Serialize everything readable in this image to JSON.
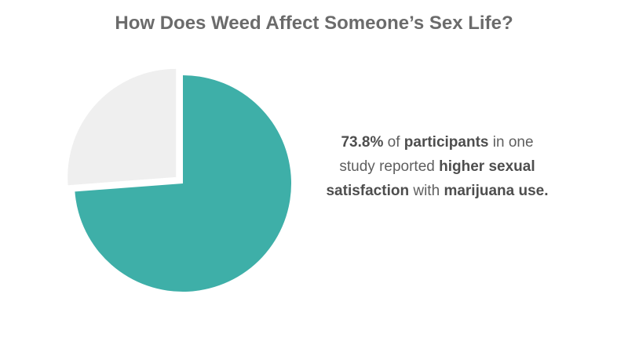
{
  "title": "How Does Weed Affect Someone’s Sex Life?",
  "caption": {
    "parts": [
      {
        "text": "73.8%",
        "bold": true
      },
      {
        "text": " of ",
        "bold": false
      },
      {
        "text": "participants",
        "bold": true
      },
      {
        "text": " in one study reported ",
        "bold": false
      },
      {
        "text": "higher sexual satisfaction",
        "bold": true
      },
      {
        "text": " with ",
        "bold": false
      },
      {
        "text": "marijuana use.",
        "bold": true
      }
    ]
  },
  "colors": {
    "main_slice": "#3eafa8",
    "rest_slice": "#efefef",
    "title": "#6b6b6b",
    "text": "#5f5f5f"
  },
  "chart_data": {
    "type": "pie",
    "title": "How Does Weed Affect Someone’s Sex Life?",
    "slices": [
      {
        "label": "",
        "value": 73.8,
        "color": "#3eafa8",
        "exploded": false
      },
      {
        "label": "",
        "value": 26.2,
        "color": "#efefef",
        "exploded": true
      }
    ],
    "start_angle": "12 o'clock",
    "direction": "clockwise",
    "legend": "none"
  }
}
